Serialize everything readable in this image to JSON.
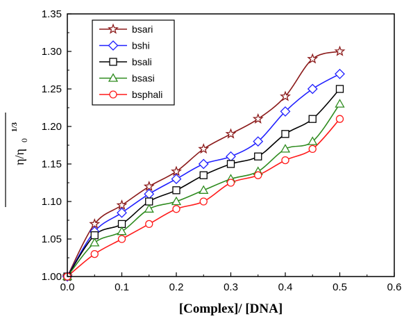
{
  "chart_data": {
    "type": "line",
    "xlabel": "[Complex]/ [DNA]",
    "ylabel": "η/η₀^1/3",
    "ylabel_main": "η/η",
    "ylabel_sub": "0",
    "ylabel_sup": "1/3",
    "xlim": [
      0.0,
      0.6
    ],
    "ylim": [
      1.0,
      1.35
    ],
    "x_ticks": [
      "0.0",
      "0.1",
      "0.2",
      "0.3",
      "0.4",
      "0.5",
      "0.6"
    ],
    "y_ticks": [
      "1.00",
      "1.05",
      "1.10",
      "1.15",
      "1.20",
      "1.25",
      "1.30",
      "1.35"
    ],
    "x": [
      0.0,
      0.05,
      0.1,
      0.15,
      0.2,
      0.25,
      0.3,
      0.35,
      0.4,
      0.45,
      0.5
    ],
    "legend_position": "top-left",
    "series": [
      {
        "name": "bsari",
        "marker": "star",
        "color": "#8b1a1a",
        "values": [
          1.0,
          1.07,
          1.095,
          1.12,
          1.14,
          1.17,
          1.19,
          1.21,
          1.24,
          1.29,
          1.3
        ]
      },
      {
        "name": "bshi",
        "marker": "diamond",
        "color": "#1f1fff",
        "values": [
          1.0,
          1.06,
          1.085,
          1.11,
          1.13,
          1.15,
          1.16,
          1.18,
          1.22,
          1.25,
          1.27
        ]
      },
      {
        "name": "bsali",
        "marker": "square",
        "color": "#000000",
        "values": [
          1.0,
          1.055,
          1.07,
          1.1,
          1.115,
          1.135,
          1.15,
          1.16,
          1.19,
          1.21,
          1.25
        ]
      },
      {
        "name": "bsasi",
        "marker": "triangle",
        "color": "#2e8b1e",
        "values": [
          1.0,
          1.045,
          1.06,
          1.09,
          1.1,
          1.115,
          1.13,
          1.14,
          1.17,
          1.18,
          1.23
        ]
      },
      {
        "name": "bsphali",
        "marker": "circle",
        "color": "#ff1a1a",
        "values": [
          1.0,
          1.03,
          1.05,
          1.07,
          1.09,
          1.1,
          1.125,
          1.135,
          1.155,
          1.17,
          1.21
        ]
      }
    ]
  }
}
